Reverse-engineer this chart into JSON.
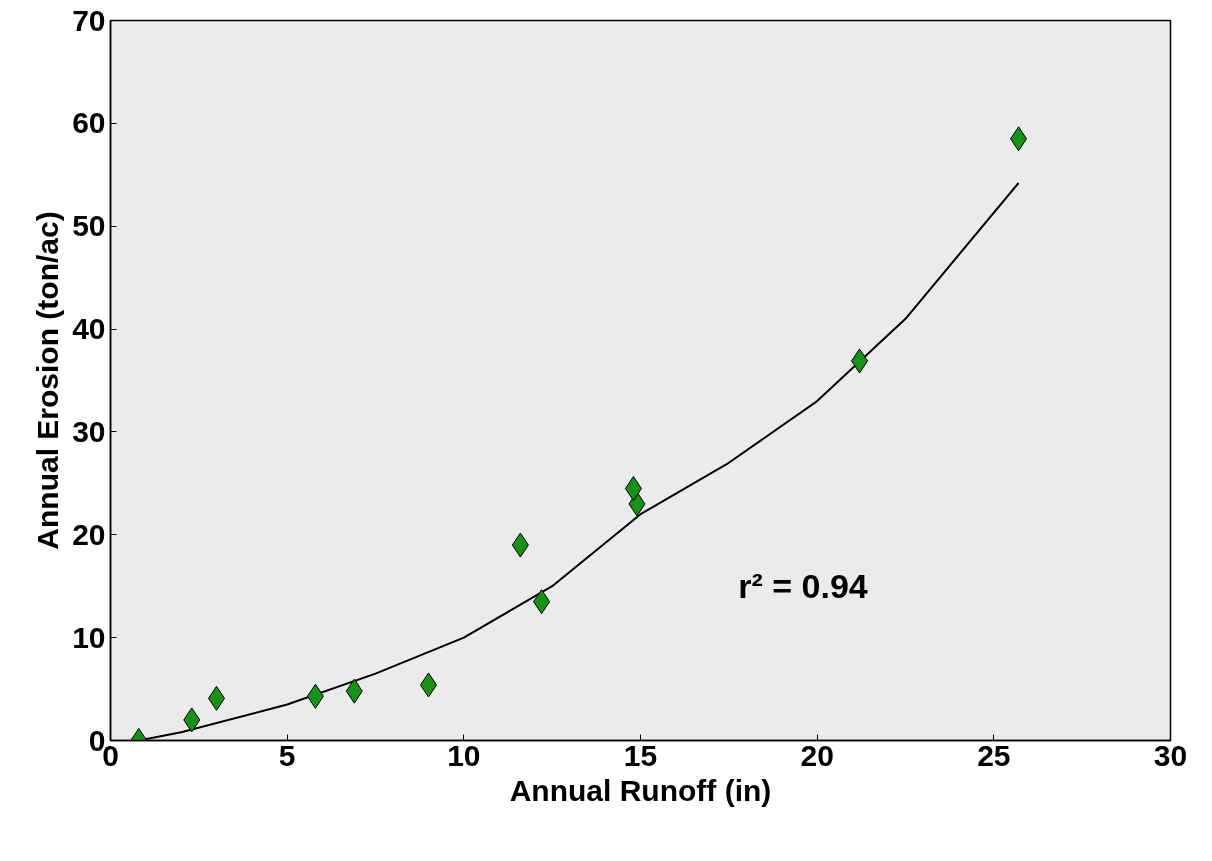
{
  "chart_data": {
    "type": "scatter",
    "xlabel": "Annual Runoff (in)",
    "ylabel": "Annual Erosion (ton/ac)",
    "xlim": [
      0,
      30
    ],
    "ylim": [
      0,
      70
    ],
    "xticks": [
      0,
      5,
      10,
      15,
      20,
      25,
      30
    ],
    "yticks": [
      0,
      10,
      20,
      30,
      40,
      50,
      60,
      70
    ],
    "grid": false,
    "series": [
      {
        "marker": "diamond",
        "color": "#199119",
        "x": [
          0.8,
          2.3,
          3.0,
          5.8,
          6.9,
          9.0,
          11.6,
          12.2,
          14.9,
          14.8,
          21.2,
          25.7
        ],
        "values": [
          0,
          2,
          4.1,
          4.3,
          4.8,
          5.4,
          19.0,
          13.5,
          23.0,
          24.5,
          36.9,
          58.5
        ]
      },
      {
        "type": "line",
        "color": "#000000",
        "x": [
          0.8,
          2,
          5,
          7.5,
          10,
          12.5,
          15,
          17.5,
          20,
          22.5,
          25.7
        ],
        "values": [
          0,
          0.8,
          3.5,
          6.5,
          10,
          15,
          22,
          27,
          33,
          41,
          54.2
        ]
      }
    ],
    "annotations": [
      "r² = 0.94"
    ]
  }
}
